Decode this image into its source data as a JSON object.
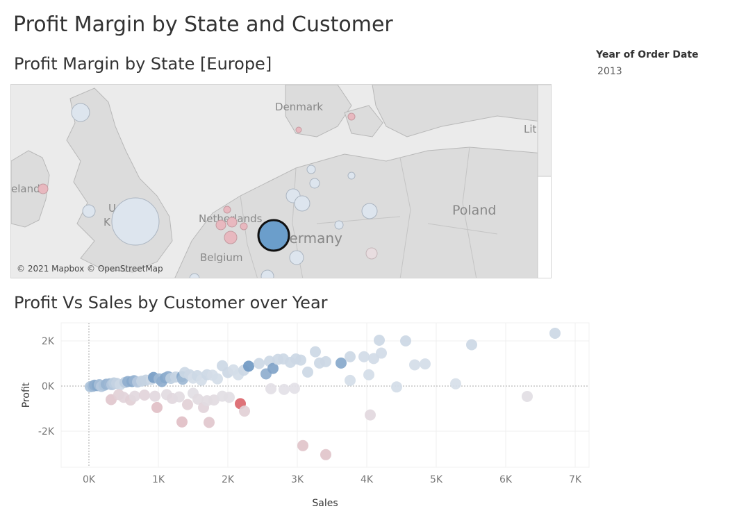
{
  "dashboard": {
    "title": "Profit Margin by State and Customer"
  },
  "filter": {
    "label": "Year of Order Date",
    "value": "2013"
  },
  "map": {
    "title": "Profit Margin by State [Europe]",
    "credit": "© 2021 Mapbox © OpenStreetMap",
    "labels": [
      "Denmark",
      "Lit",
      "eland",
      "U",
      "K",
      "Netherlands",
      "Germany",
      "Belgium",
      "Poland"
    ],
    "marker_colors": {
      "positive": "#6b9ecb",
      "neutral": "#dde5ee",
      "negative": "#e8b8bf"
    }
  },
  "chart_data": {
    "type": "scatter",
    "title": "Profit Vs Sales by Customer over Year",
    "xlabel": "Sales",
    "ylabel": "Profit",
    "xlim": [
      -400,
      7200
    ],
    "ylim": [
      -3600,
      2800
    ],
    "x_ticks": [
      0,
      1000,
      2000,
      3000,
      4000,
      5000,
      6000,
      7000
    ],
    "x_tick_labels": [
      "0K",
      "1K",
      "2K",
      "3K",
      "4K",
      "5K",
      "6K",
      "7K"
    ],
    "y_ticks": [
      -2000,
      0,
      2000
    ],
    "y_tick_labels": [
      "-2K",
      "0K",
      "2K"
    ],
    "grid": true,
    "color_scale": {
      "positive": "#4a7eb4",
      "neutral": "#e3e8ee",
      "negative": "#d9454b"
    },
    "points": [
      {
        "x": 20,
        "y": -30,
        "m": 0.35
      },
      {
        "x": 60,
        "y": -10,
        "m": 0.45
      },
      {
        "x": 80,
        "y": 40,
        "m": 0.55
      },
      {
        "x": 120,
        "y": 20,
        "m": 0.6
      },
      {
        "x": 150,
        "y": 60,
        "m": 0.4
      },
      {
        "x": 180,
        "y": -20,
        "m": 0.3
      },
      {
        "x": 220,
        "y": 30,
        "m": 0.35
      },
      {
        "x": 250,
        "y": 80,
        "m": 0.5
      },
      {
        "x": 300,
        "y": 100,
        "m": 0.45
      },
      {
        "x": 330,
        "y": 60,
        "m": 0.3
      },
      {
        "x": 360,
        "y": 140,
        "m": 0.25
      },
      {
        "x": 400,
        "y": 120,
        "m": 0.2
      },
      {
        "x": 450,
        "y": 60,
        "m": 0.15
      },
      {
        "x": 520,
        "y": 160,
        "m": 0.25
      },
      {
        "x": 560,
        "y": 200,
        "m": 0.55
      },
      {
        "x": 620,
        "y": 200,
        "m": 0.6
      },
      {
        "x": 650,
        "y": 240,
        "m": 0.5
      },
      {
        "x": 700,
        "y": 180,
        "m": 0.3
      },
      {
        "x": 760,
        "y": 220,
        "m": 0.2
      },
      {
        "x": 820,
        "y": 260,
        "m": 0.2
      },
      {
        "x": 900,
        "y": 300,
        "m": 0.15
      },
      {
        "x": 930,
        "y": 380,
        "m": 0.7
      },
      {
        "x": 1010,
        "y": 320,
        "m": 0.45
      },
      {
        "x": 1050,
        "y": 200,
        "m": 0.55
      },
      {
        "x": 1100,
        "y": 360,
        "m": 0.6
      },
      {
        "x": 1140,
        "y": 420,
        "m": 0.55
      },
      {
        "x": 1180,
        "y": 340,
        "m": 0.25
      },
      {
        "x": 1250,
        "y": 400,
        "m": 0.2
      },
      {
        "x": 1340,
        "y": 420,
        "m": 0.6
      },
      {
        "x": 1350,
        "y": 300,
        "m": 0.45
      },
      {
        "x": 1380,
        "y": 600,
        "m": 0.15
      },
      {
        "x": 1450,
        "y": 500,
        "m": 0.15
      },
      {
        "x": 1500,
        "y": 350,
        "m": 0.1
      },
      {
        "x": 1560,
        "y": 460,
        "m": 0.15
      },
      {
        "x": 1620,
        "y": 260,
        "m": 0.1
      },
      {
        "x": 1700,
        "y": 500,
        "m": 0.15
      },
      {
        "x": 1780,
        "y": 480,
        "m": 0.1
      },
      {
        "x": 1850,
        "y": 320,
        "m": 0.1
      },
      {
        "x": 1920,
        "y": 900,
        "m": 0.15
      },
      {
        "x": 2000,
        "y": 600,
        "m": 0.15
      },
      {
        "x": 2080,
        "y": 720,
        "m": 0.1
      },
      {
        "x": 2150,
        "y": 500,
        "m": 0.1
      },
      {
        "x": 2230,
        "y": 700,
        "m": 0.15
      },
      {
        "x": 2300,
        "y": 880,
        "m": 0.75
      },
      {
        "x": 2450,
        "y": 1000,
        "m": 0.15
      },
      {
        "x": 2550,
        "y": 540,
        "m": 0.55
      },
      {
        "x": 2600,
        "y": 1100,
        "m": 0.15
      },
      {
        "x": 2650,
        "y": 780,
        "m": 0.65
      },
      {
        "x": 2720,
        "y": 1180,
        "m": 0.15
      },
      {
        "x": 2800,
        "y": 1200,
        "m": 0.15
      },
      {
        "x": 2900,
        "y": 1050,
        "m": 0.15
      },
      {
        "x": 2980,
        "y": 1200,
        "m": 0.15
      },
      {
        "x": 3050,
        "y": 1150,
        "m": 0.15
      },
      {
        "x": 3150,
        "y": 620,
        "m": 0.15
      },
      {
        "x": 3260,
        "y": 1520,
        "m": 0.15
      },
      {
        "x": 3320,
        "y": 1020,
        "m": 0.15
      },
      {
        "x": 3410,
        "y": 1080,
        "m": 0.15
      },
      {
        "x": 3630,
        "y": 1020,
        "m": 0.6
      },
      {
        "x": 3760,
        "y": 1300,
        "m": 0.15
      },
      {
        "x": 3760,
        "y": 250,
        "m": 0.1
      },
      {
        "x": 3960,
        "y": 1300,
        "m": 0.12
      },
      {
        "x": 4030,
        "y": 500,
        "m": 0.1
      },
      {
        "x": 4100,
        "y": 1220,
        "m": 0.12
      },
      {
        "x": 4180,
        "y": 2030,
        "m": 0.15
      },
      {
        "x": 4210,
        "y": 1460,
        "m": 0.12
      },
      {
        "x": 4430,
        "y": -40,
        "m": 0.1
      },
      {
        "x": 4560,
        "y": 2000,
        "m": 0.15
      },
      {
        "x": 4690,
        "y": 940,
        "m": 0.1
      },
      {
        "x": 4840,
        "y": 980,
        "m": 0.1
      },
      {
        "x": 5280,
        "y": 100,
        "m": 0.08
      },
      {
        "x": 5510,
        "y": 1830,
        "m": 0.15
      },
      {
        "x": 6710,
        "y": 2340,
        "m": 0.15
      },
      {
        "x": 320,
        "y": -600,
        "m": -0.2
      },
      {
        "x": 430,
        "y": -380,
        "m": -0.15
      },
      {
        "x": 500,
        "y": -500,
        "m": -0.12
      },
      {
        "x": 600,
        "y": -620,
        "m": -0.15
      },
      {
        "x": 660,
        "y": -450,
        "m": -0.1
      },
      {
        "x": 800,
        "y": -400,
        "m": -0.12
      },
      {
        "x": 950,
        "y": -450,
        "m": -0.1
      },
      {
        "x": 980,
        "y": -950,
        "m": -0.25
      },
      {
        "x": 1120,
        "y": -380,
        "m": -0.08
      },
      {
        "x": 1200,
        "y": -550,
        "m": -0.1
      },
      {
        "x": 1300,
        "y": -480,
        "m": -0.08
      },
      {
        "x": 1340,
        "y": -1590,
        "m": -0.25
      },
      {
        "x": 1420,
        "y": -820,
        "m": -0.15
      },
      {
        "x": 1500,
        "y": -320,
        "m": -0.06
      },
      {
        "x": 1570,
        "y": -580,
        "m": -0.08
      },
      {
        "x": 1650,
        "y": -950,
        "m": -0.12
      },
      {
        "x": 1700,
        "y": -650,
        "m": -0.08
      },
      {
        "x": 1730,
        "y": -1610,
        "m": -0.2
      },
      {
        "x": 1800,
        "y": -620,
        "m": -0.08
      },
      {
        "x": 1920,
        "y": -450,
        "m": -0.06
      },
      {
        "x": 2020,
        "y": -500,
        "m": -0.06
      },
      {
        "x": 2180,
        "y": -780,
        "m": -0.8
      },
      {
        "x": 2240,
        "y": -1110,
        "m": -0.15
      },
      {
        "x": 2620,
        "y": -120,
        "m": -0.05
      },
      {
        "x": 2810,
        "y": -150,
        "m": -0.04
      },
      {
        "x": 2960,
        "y": -100,
        "m": -0.04
      },
      {
        "x": 3080,
        "y": -2640,
        "m": -0.22
      },
      {
        "x": 3410,
        "y": -3040,
        "m": -0.22
      },
      {
        "x": 4050,
        "y": -1280,
        "m": -0.1
      },
      {
        "x": 6310,
        "y": -460,
        "m": -0.06
      }
    ]
  }
}
